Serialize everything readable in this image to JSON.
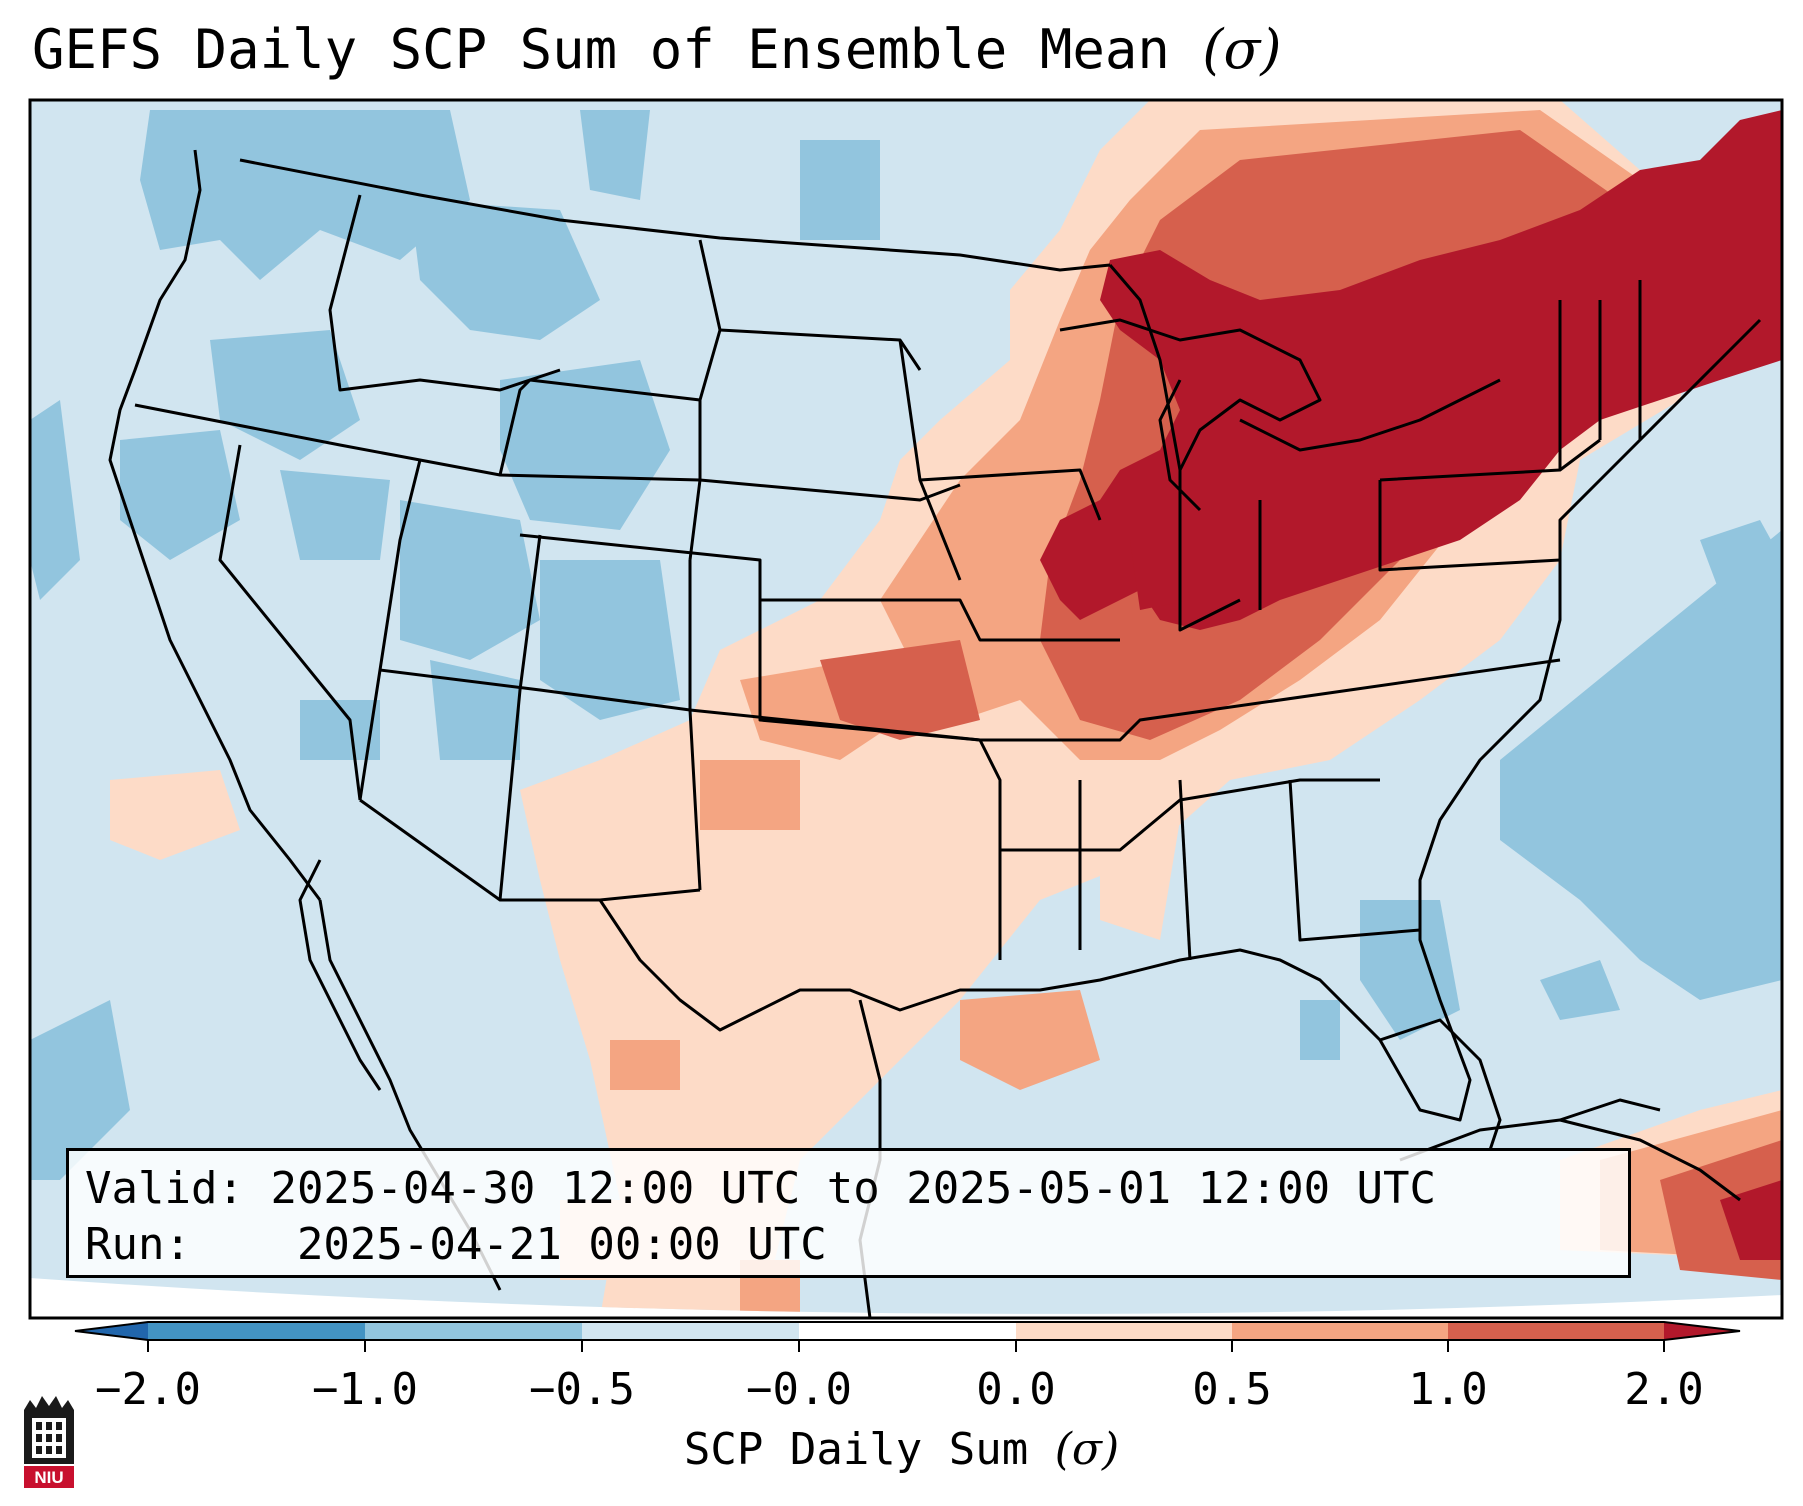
{
  "title": "GEFS Daily SCP Sum of Ensemble Mean",
  "title_sigma": "(σ)",
  "info": {
    "valid_label": "Valid:",
    "valid_value": "2025-04-30 12:00 UTC to 2025-05-01 12:00 UTC",
    "run_label": "Run:",
    "run_value": "2025-04-21 00:00 UTC"
  },
  "colorbar": {
    "label": "SCP Daily Sum",
    "label_sigma": "(σ)",
    "ticks": [
      "−2.0",
      "−1.0",
      "−0.5",
      "−0.0",
      "0.0",
      "0.5",
      "1.0",
      "2.0"
    ],
    "colors": [
      "#2166ac",
      "#4393c3",
      "#92c5de",
      "#d1e5f0",
      "#fddbc7",
      "#f4a582",
      "#d6604d",
      "#b2182b"
    ],
    "extend_low_color": "#2166ac",
    "extend_high_color": "#b2182b"
  },
  "logo": {
    "text": "NIU"
  }
}
